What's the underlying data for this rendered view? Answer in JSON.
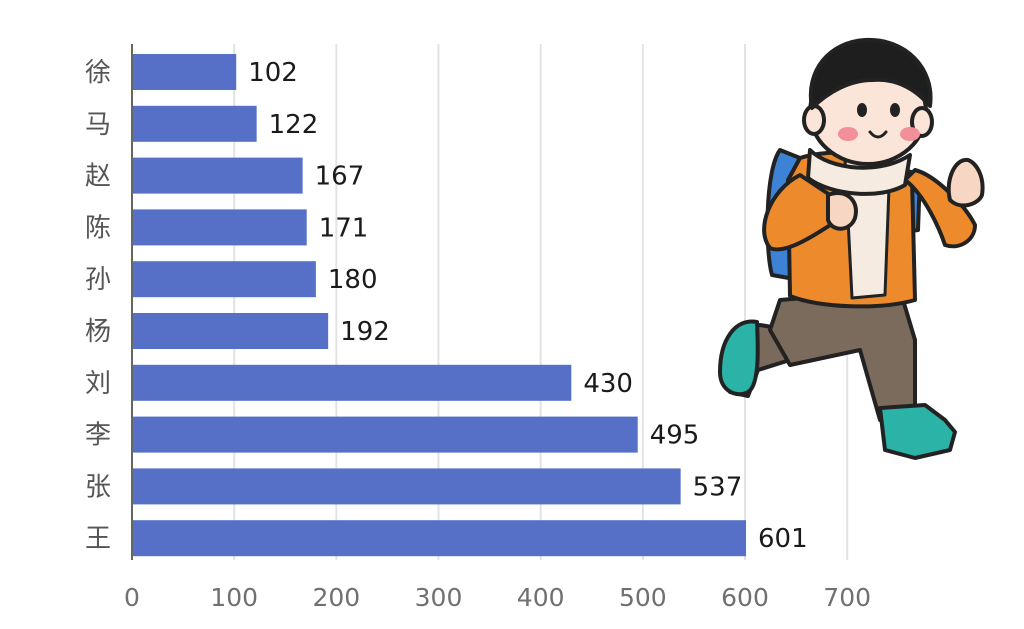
{
  "chart_data": {
    "type": "bar",
    "orientation": "horizontal",
    "title": "",
    "xlabel": "",
    "ylabel": "",
    "categories": [
      "徐",
      "马",
      "赵",
      "陈",
      "孙",
      "杨",
      "刘",
      "李",
      "张",
      "王"
    ],
    "values": [
      102,
      122,
      167,
      171,
      180,
      192,
      430,
      495,
      537,
      601
    ],
    "xlim": [
      0,
      700
    ],
    "xticks": [
      0,
      100,
      200,
      300,
      400,
      500,
      600,
      700
    ],
    "grid": "vertical",
    "legend": "none",
    "data_labels": true,
    "colors": {
      "bar": "#5570C6",
      "grid": "#e3e3e3",
      "axis": "#666666"
    }
  },
  "illustration": {
    "icon": "running-boy-with-backpack-icon"
  }
}
